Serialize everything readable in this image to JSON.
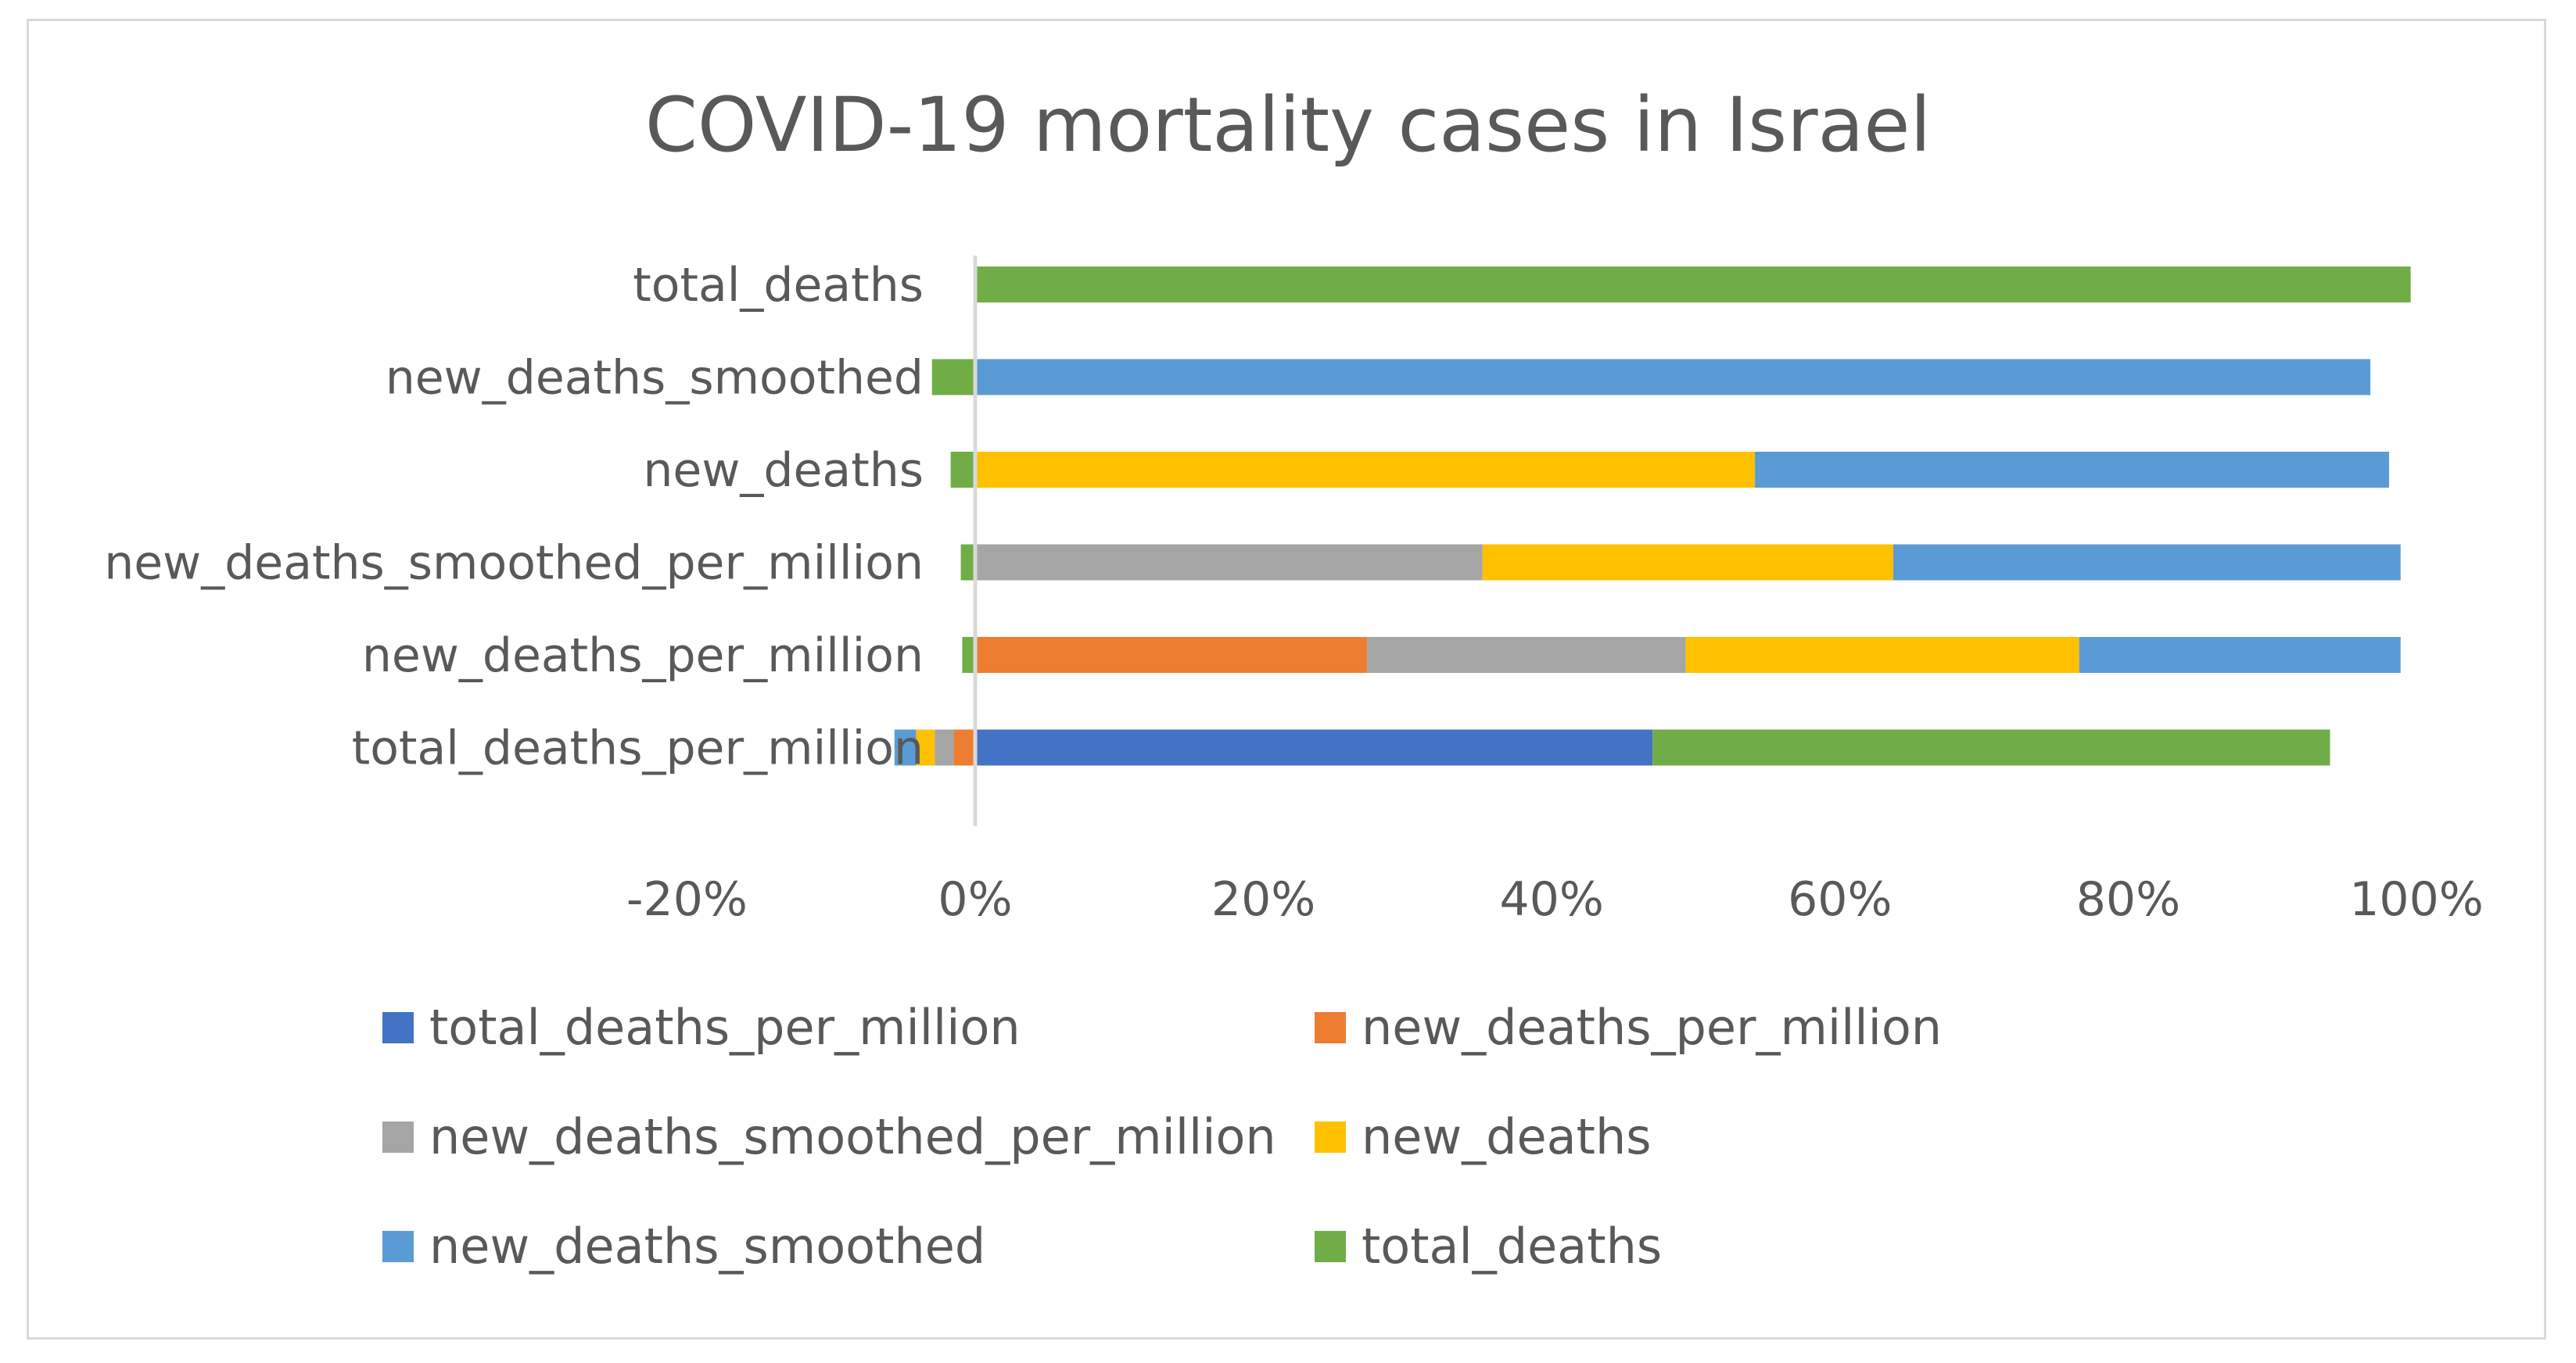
{
  "chart_data": {
    "type": "bar",
    "orientation": "horizontal",
    "stacked": true,
    "title": "COVID-19 mortality cases in Israel",
    "xlabel": "",
    "ylabel": "",
    "xlim": [
      -0.2,
      1.0
    ],
    "x_ticks": [
      -0.2,
      0,
      0.2,
      0.4,
      0.6,
      0.8,
      1.0
    ],
    "x_tick_labels": [
      "-20%",
      "0%",
      "20%",
      "40%",
      "60%",
      "80%",
      "100%"
    ],
    "categories": [
      "total_deaths_per_million",
      "new_deaths_per_million",
      "new_deaths_smoothed_per_million",
      "new_deaths",
      "new_deaths_smoothed",
      "total_deaths"
    ],
    "series": [
      {
        "name": "total_deaths_per_million",
        "color": "#4472c4",
        "values": [
          0.47,
          0,
          0,
          0,
          0,
          0
        ]
      },
      {
        "name": "new_deaths_per_million",
        "color": "#ed7d31",
        "values": [
          -0.015,
          0.272,
          0,
          0,
          0,
          0
        ]
      },
      {
        "name": "new_deaths_smoothed_per_million",
        "color": "#a5a5a5",
        "values": [
          -0.013,
          0.221,
          0.352,
          0,
          0,
          0
        ]
      },
      {
        "name": "new_deaths",
        "color": "#ffc000",
        "values": [
          -0.013,
          0.273,
          0.285,
          0.541,
          0,
          0
        ]
      },
      {
        "name": "new_deaths_smoothed",
        "color": "#5b9bd5",
        "values": [
          -0.015,
          0.223,
          0.352,
          0.44,
          0.968,
          0
        ]
      },
      {
        "name": "total_deaths",
        "color": "#70ad47",
        "values": [
          0.47,
          -0.009,
          -0.01,
          -0.017,
          -0.03,
          0.996
        ]
      }
    ],
    "legend": {
      "position": "bottom",
      "entries": [
        "total_deaths_per_million",
        "new_deaths_per_million",
        "new_deaths_smoothed_per_million",
        "new_deaths",
        "new_deaths_smoothed",
        "total_deaths"
      ]
    },
    "grid": false,
    "zero_line": true
  }
}
